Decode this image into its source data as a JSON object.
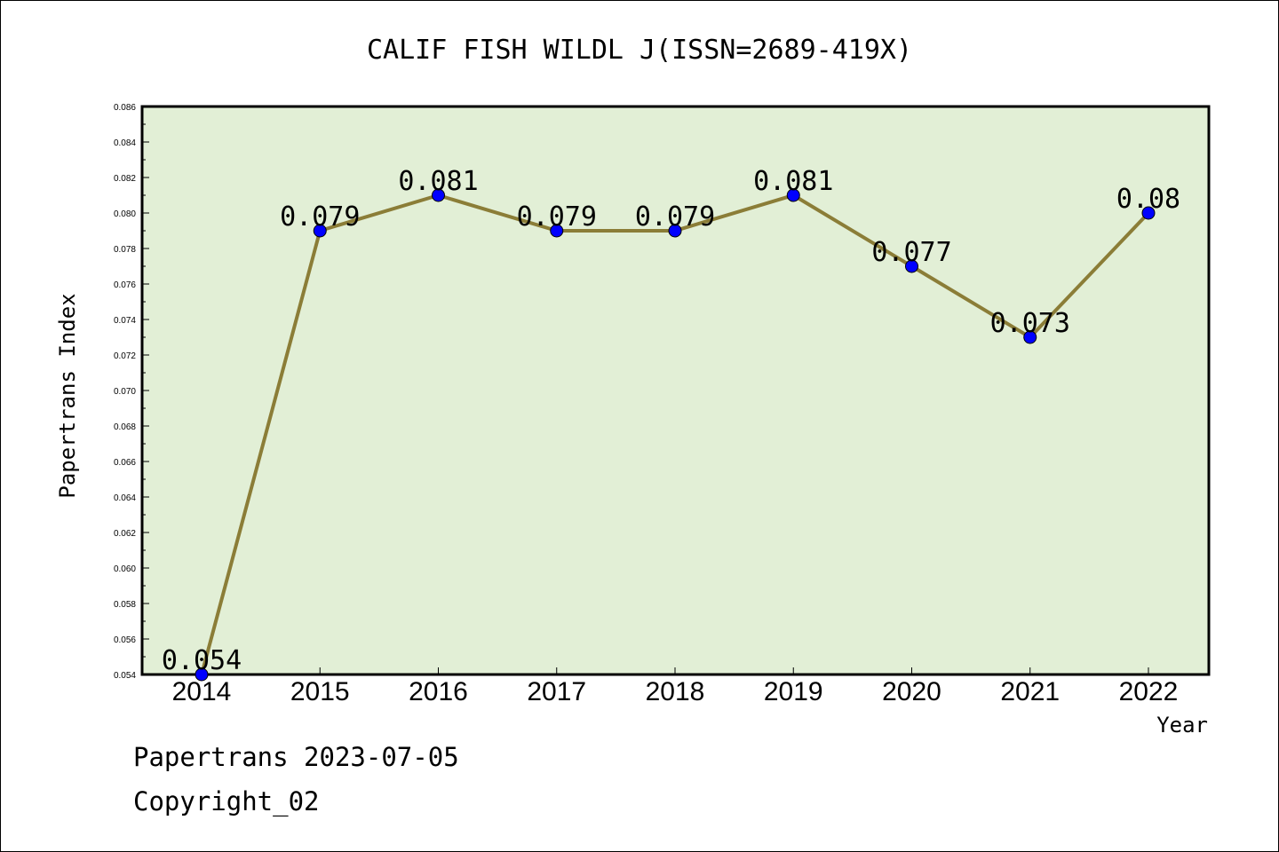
{
  "chart_data": {
    "type": "line",
    "title": "CALIF FISH WILDL J(ISSN=2689-419X)",
    "xlabel": "Year",
    "ylabel": "Papertrans Index",
    "categories": [
      "2014",
      "2015",
      "2016",
      "2017",
      "2018",
      "2019",
      "2020",
      "2021",
      "2022"
    ],
    "values": [
      0.054,
      0.079,
      0.081,
      0.079,
      0.079,
      0.081,
      0.077,
      0.073,
      0.08
    ],
    "data_labels": [
      "0.054",
      "0.079",
      "0.081",
      "0.079",
      "0.079",
      "0.081",
      "0.077",
      "0.073",
      "0.08"
    ],
    "ylim": [
      0.054,
      0.086
    ],
    "yticks": [
      "0.054",
      "0.056",
      "0.058",
      "0.060",
      "0.062",
      "0.064",
      "0.066",
      "0.068",
      "0.070",
      "0.072",
      "0.074",
      "0.076",
      "0.078",
      "0.080",
      "0.082",
      "0.084",
      "0.086"
    ],
    "grid": false,
    "colors": {
      "plot_background": "#e2efd6",
      "line": "#8b7d37",
      "marker": "#0000ff"
    }
  },
  "footer": {
    "date_line": "Papertrans 2023-07-05",
    "copyright": "Copyright_02"
  }
}
